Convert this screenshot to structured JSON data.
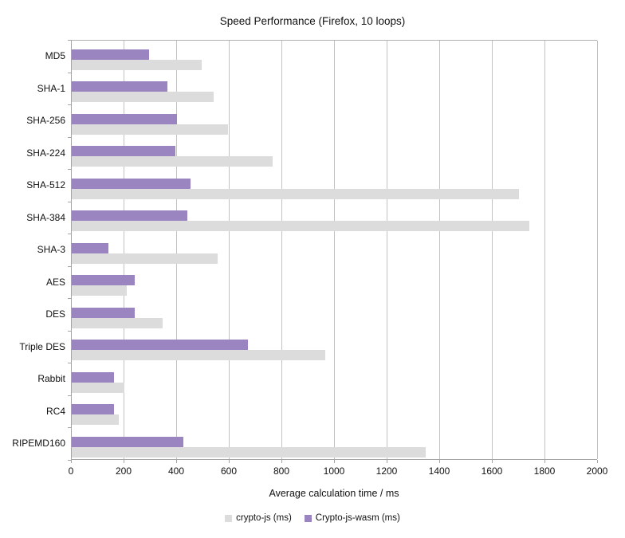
{
  "chart_data": {
    "type": "bar",
    "orientation": "horizontal",
    "title": "Speed Performance (Firefox, 10 loops)",
    "xlabel": "Average calculation time / ms",
    "ylabel": "",
    "xlim": [
      0,
      2000
    ],
    "x_ticks": [
      0,
      200,
      400,
      600,
      800,
      1000,
      1200,
      1400,
      1600,
      1800,
      2000
    ],
    "grid": "vertical-on",
    "legend_position": "bottom",
    "categories": [
      "MD5",
      "SHA-1",
      "SHA-256",
      "SHA-224",
      "SHA-512",
      "SHA-384",
      "SHA-3",
      "AES",
      "DES",
      "Triple DES",
      "Rabbit",
      "RC4",
      "RIPEMD160"
    ],
    "series": [
      {
        "name": "crypto-js (ms)",
        "color": "#dcdcdc",
        "values": [
          495,
          540,
          595,
          765,
          1700,
          1740,
          555,
          210,
          345,
          965,
          200,
          180,
          1345
        ]
      },
      {
        "name": "Crypto-js-wasm (ms)",
        "color": "#9a85c1",
        "values": [
          295,
          365,
          400,
          395,
          450,
          440,
          140,
          240,
          240,
          670,
          160,
          160,
          425
        ]
      }
    ]
  }
}
